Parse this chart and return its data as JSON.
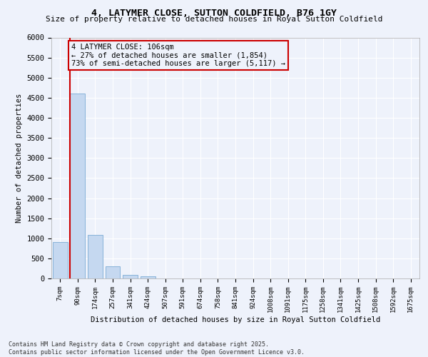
{
  "title": "4, LATYMER CLOSE, SUTTON COLDFIELD, B76 1GY",
  "subtitle": "Size of property relative to detached houses in Royal Sutton Coldfield",
  "xlabel": "Distribution of detached houses by size in Royal Sutton Coldfield",
  "ylabel": "Number of detached properties",
  "bar_color": "#c5d8f0",
  "bar_edge_color": "#7aaad4",
  "background_color": "#eef2fb",
  "grid_color": "#ffffff",
  "categories": [
    "7sqm",
    "90sqm",
    "174sqm",
    "257sqm",
    "341sqm",
    "424sqm",
    "507sqm",
    "591sqm",
    "674sqm",
    "758sqm",
    "841sqm",
    "924sqm",
    "1008sqm",
    "1091sqm",
    "1175sqm",
    "1258sqm",
    "1341sqm",
    "1425sqm",
    "1508sqm",
    "1592sqm",
    "1675sqm"
  ],
  "values": [
    900,
    4600,
    1080,
    300,
    90,
    60,
    0,
    0,
    0,
    0,
    0,
    0,
    0,
    0,
    0,
    0,
    0,
    0,
    0,
    0,
    0
  ],
  "ylim": [
    0,
    6000
  ],
  "yticks": [
    0,
    500,
    1000,
    1500,
    2000,
    2500,
    3000,
    3500,
    4000,
    4500,
    5000,
    5500,
    6000
  ],
  "vline_x": 1,
  "vline_color": "#cc0000",
  "annotation_title": "4 LATYMER CLOSE: 106sqm",
  "annotation_line1": "← 27% of detached houses are smaller (1,854)",
  "annotation_line2": "73% of semi-detached houses are larger (5,117) →",
  "annotation_box_color": "#cc0000",
  "footer": "Contains HM Land Registry data © Crown copyright and database right 2025.\nContains public sector information licensed under the Open Government Licence v3.0."
}
